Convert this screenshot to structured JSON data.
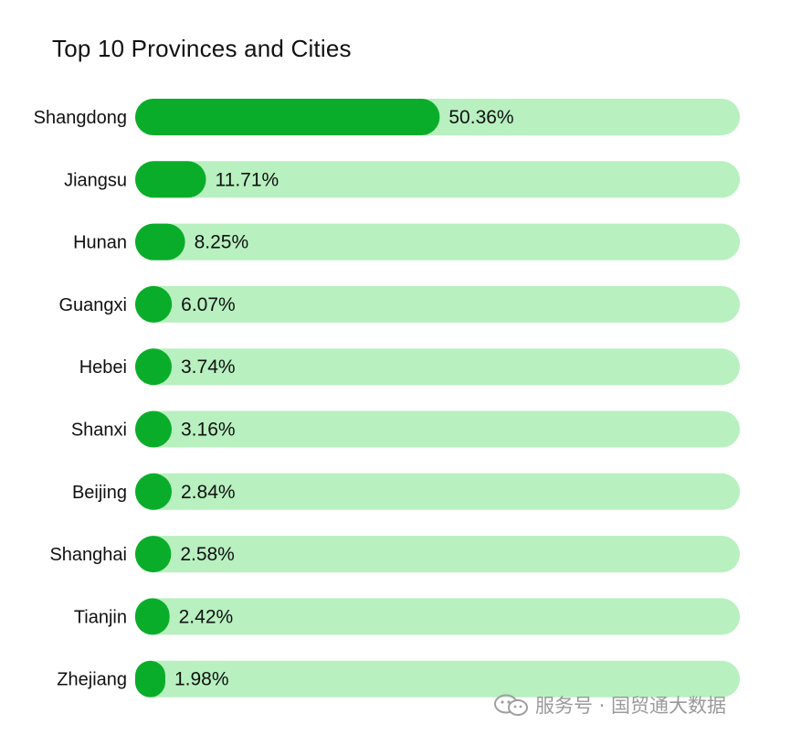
{
  "chart_data": {
    "type": "bar",
    "orientation": "horizontal",
    "title": "Top 10 Provinces and Cities",
    "categories": [
      "Shangdong",
      "Jiangsu",
      "Hunan",
      "Guangxi",
      "Hebei",
      "Shanxi",
      "Beijing",
      "Shanghai",
      "Tianjin",
      "Zhejiang"
    ],
    "values": [
      50.36,
      11.71,
      8.25,
      6.07,
      3.74,
      3.16,
      2.84,
      2.58,
      2.42,
      1.98
    ],
    "value_labels": [
      "50.36%",
      "11.71%",
      "8.25%",
      "6.07%",
      "3.74%",
      "3.16%",
      "2.84%",
      "2.58%",
      "2.42%",
      "1.98%"
    ],
    "xlim": [
      0,
      100
    ],
    "unit": "%",
    "grid": false,
    "legend": "none",
    "colors": {
      "bar": "#0aad2a",
      "track": "#b8f0c0"
    }
  },
  "watermark": {
    "text": "服务号 · 国贸通大数据",
    "icon": "wechat-icon"
  }
}
